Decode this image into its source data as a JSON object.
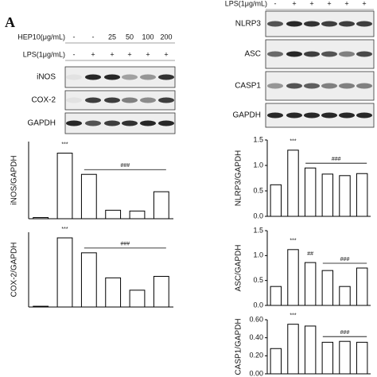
{
  "panel_label": "A",
  "left_blot": {
    "treatments": [
      {
        "label": "HEP10(μg/mL)",
        "values": [
          "-",
          "-",
          "25",
          "50",
          "100",
          "200"
        ]
      },
      {
        "label": "LPS(1μg/mL)",
        "values": [
          "-",
          "+",
          "+",
          "+",
          "+",
          "+"
        ]
      }
    ],
    "rows": [
      "iNOS",
      "COX-2",
      "GAPDH"
    ]
  },
  "right_blot": {
    "treatments": [
      {
        "label": "LPS(1μg/mL)",
        "values": [
          "-",
          "+",
          "+",
          "+",
          "+",
          "+"
        ]
      }
    ],
    "rows": [
      "NLRP3",
      "ASC",
      "CASP1",
      "GAPDH"
    ]
  },
  "chart_data": [
    {
      "type": "bar",
      "ylabel": "iNOS/GAPDH",
      "values": [
        0.03,
        1.7,
        1.15,
        0.22,
        0.2,
        0.7
      ],
      "color": "#ffffff",
      "ylim": [
        0,
        2
      ],
      "annotations": [
        "***",
        "###"
      ]
    },
    {
      "type": "bar",
      "ylabel": "COX-2/GAPDH",
      "values": [
        0.02,
        1.85,
        1.45,
        0.78,
        0.45,
        0.82
      ],
      "color": "#ffffff",
      "ylim": [
        0,
        2
      ],
      "annotations": [
        "***",
        "###"
      ]
    },
    {
      "type": "bar",
      "ylabel": "NLRP3/GAPDH",
      "values": [
        0.62,
        1.3,
        0.95,
        0.83,
        0.8,
        0.84
      ],
      "color": "#ffffff",
      "ylim": [
        0,
        1.5
      ],
      "yticks": [
        {
          "value": 0,
          "label": "0.0"
        },
        0.5,
        {
          "value": 1,
          "label": "1.0"
        },
        1.5
      ],
      "annotations": [
        "***",
        "###"
      ]
    },
    {
      "type": "bar",
      "ylabel": "ASC/GAPDH",
      "values": [
        0.38,
        1.12,
        0.86,
        0.7,
        0.38,
        0.75
      ],
      "color": "#ffffff",
      "ylim": [
        0,
        1.5
      ],
      "yticks": [
        {
          "value": 0,
          "label": "0.0"
        },
        0.5,
        {
          "value": 1,
          "label": "1.0"
        },
        1.5
      ],
      "annotations": [
        "***",
        "##",
        "###"
      ]
    },
    {
      "type": "bar",
      "ylabel": "CASP1/GAPDH",
      "values": [
        0.28,
        0.55,
        0.53,
        0.35,
        0.36,
        0.35
      ],
      "color": "#ffffff",
      "ylim": [
        0,
        0.6
      ],
      "yticks": [
        {
          "value": 0,
          "label": "0.00"
        },
        {
          "value": 0.2,
          "label": "0.20"
        },
        {
          "value": 0.4,
          "label": "0.40"
        },
        {
          "value": 0.6,
          "label": "0.60"
        }
      ],
      "annotations": [
        "***",
        "###"
      ]
    }
  ]
}
